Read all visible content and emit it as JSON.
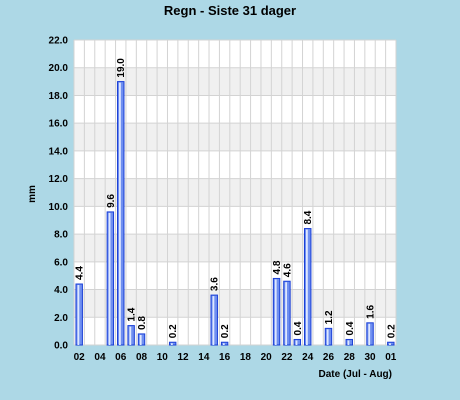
{
  "chart_data": {
    "type": "bar",
    "title": "Regn - Siste 31 dager",
    "ylabel": "mm",
    "xlabel": "Date (Jul - Aug)",
    "ylim": [
      0,
      22
    ],
    "yticks": [
      "0.0",
      "2.0",
      "4.0",
      "6.0",
      "8.0",
      "10.0",
      "12.0",
      "14.0",
      "16.0",
      "18.0",
      "20.0",
      "22.0"
    ],
    "x_tick_labels": [
      "02",
      "04",
      "06",
      "08",
      "10",
      "12",
      "14",
      "16",
      "18",
      "20",
      "22",
      "24",
      "26",
      "28",
      "30",
      "01"
    ],
    "categories": [
      "02",
      "03",
      "04",
      "05",
      "06",
      "07",
      "08",
      "09",
      "10",
      "11",
      "12",
      "13",
      "14",
      "15",
      "16",
      "17",
      "18",
      "19",
      "20",
      "21",
      "22",
      "23",
      "24",
      "25",
      "26",
      "27",
      "28",
      "29",
      "30",
      "31",
      "01"
    ],
    "values": [
      4.4,
      0,
      0,
      9.6,
      19.0,
      1.4,
      0.8,
      0,
      0,
      0.2,
      0,
      0,
      0,
      3.6,
      0.2,
      0,
      0,
      0,
      0,
      4.8,
      4.6,
      0.4,
      8.4,
      0,
      1.2,
      0,
      0.4,
      0,
      1.6,
      0,
      0.2
    ],
    "data_labels": [
      "4.4",
      "",
      "",
      "9.6",
      "19.0",
      "1.4",
      "0.8",
      "",
      "",
      "0.2",
      "",
      "",
      "",
      "3.6",
      "0.2",
      "",
      "",
      "",
      "",
      "4.8",
      "4.6",
      "0.4",
      "8.4",
      "",
      "1.2",
      "",
      "0.4",
      "",
      "1.6",
      "",
      "0.2"
    ],
    "grid": true,
    "colors": {
      "background": "#add8e6",
      "plot_band_light": "#ffffff",
      "plot_band_dark": "#f0f0f0",
      "grid": "#d3d3d3",
      "bar_fill": "#6f8ff0",
      "bar_edge": "#1a3fd6",
      "bar_highlight": "#dfe8ff"
    }
  }
}
